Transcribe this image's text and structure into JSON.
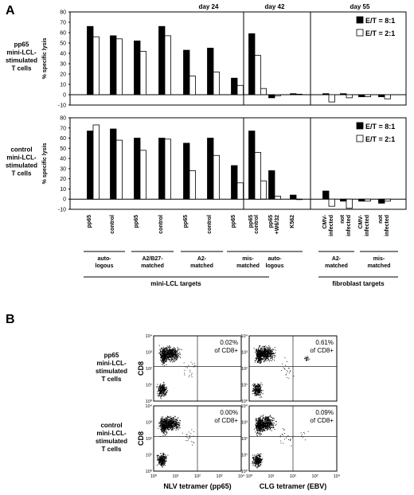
{
  "panels": {
    "a_label": "A",
    "b_label": "B",
    "day_titles": [
      "day 24",
      "day 42",
      "day 55"
    ]
  },
  "legend": {
    "entries": [
      {
        "label": "E/T = 8:1",
        "color": "#000000"
      },
      {
        "label": "E/T = 2:1",
        "color": "#ffffff"
      }
    ]
  },
  "row_labels": {
    "pp65": [
      "pp65",
      "mini-LCL-",
      "stimulated",
      "T cells"
    ],
    "control": [
      "control",
      "mini-LCL-",
      "stimulated",
      "T cells"
    ]
  },
  "group_labels": {
    "auto1": [
      "auto-",
      "logous"
    ],
    "a2b27": [
      "A2/B27-",
      "matched"
    ],
    "a2m1": [
      "A2-",
      "matched"
    ],
    "mis1": [
      "mis-",
      "matched"
    ],
    "auto2": [
      "auto-",
      "logous"
    ],
    "a2m2": [
      "A2-",
      "matched"
    ],
    "mis2": [
      "mis-",
      "matched"
    ]
  },
  "target_labels": {
    "mini_lcl": "mini-LCL targets",
    "fibroblast": "fibroblast targets"
  },
  "chart_data": [
    {
      "type": "bar",
      "panel": "A",
      "row": "pp65 mini-LCL-stimulated T cells",
      "ylabel": "% specific lysis",
      "ylim": [
        -10,
        80
      ],
      "yticks": [
        -10,
        0,
        10,
        20,
        30,
        40,
        50,
        60,
        70,
        80
      ],
      "series_names": [
        "E/T = 8:1",
        "E/T = 2:1"
      ],
      "subpanels": [
        {
          "day": "day 24",
          "categories": [
            [
              "pp65"
            ],
            [
              "control"
            ],
            [
              "pp65"
            ],
            [
              "control"
            ],
            [
              "pp65"
            ],
            [
              "control"
            ],
            [
              "pp65"
            ],
            [
              "control"
            ]
          ],
          "series": [
            {
              "name": "E/T = 8:1",
              "values": [
                66,
                57,
                52,
                66,
                43,
                45,
                16,
                12
              ]
            },
            {
              "name": "E/T = 2:1",
              "values": [
                56,
                54,
                42,
                57,
                18,
                22,
                9,
                6
              ]
            }
          ]
        },
        {
          "day": "day 42",
          "categories": [
            [
              "pp65"
            ],
            [
              "pp65",
              "+W6/32"
            ],
            [
              "K562"
            ]
          ],
          "series": [
            {
              "name": "E/T = 8:1",
              "values": [
                59,
                -3,
                1
              ]
            },
            {
              "name": "E/T = 2:1",
              "values": [
                38,
                -1,
                0.5
              ]
            }
          ]
        },
        {
          "day": "day 55",
          "categories": [
            [
              "CMV-",
              "infected"
            ],
            [
              "not",
              "infected"
            ],
            [
              "CMV-",
              "infected"
            ],
            [
              "not",
              "infected"
            ]
          ],
          "series": [
            {
              "name": "E/T = 8:1",
              "values": [
                1,
                1,
                -2,
                -2
              ]
            },
            {
              "name": "E/T = 2:1",
              "values": [
                -7,
                -3,
                -2,
                -4
              ]
            }
          ]
        }
      ]
    },
    {
      "type": "bar",
      "panel": "A",
      "row": "control mini-LCL-stimulated T cells",
      "ylabel": "% specific lysis",
      "ylim": [
        -10,
        80
      ],
      "yticks": [
        -10,
        0,
        10,
        20,
        30,
        40,
        50,
        60,
        70,
        80
      ],
      "series_names": [
        "E/T = 8:1",
        "E/T = 2:1"
      ],
      "subpanels": [
        {
          "day": "day 24",
          "categories": [
            [
              "pp65"
            ],
            [
              "control"
            ],
            [
              "pp65"
            ],
            [
              "control"
            ],
            [
              "pp65"
            ],
            [
              "control"
            ],
            [
              "pp65"
            ],
            [
              "control"
            ]
          ],
          "series": [
            {
              "name": "E/T = 8:1",
              "values": [
                67,
                69,
                60,
                60,
                55,
                60,
                33,
                30
              ]
            },
            {
              "name": "E/T = 2:1",
              "values": [
                73,
                58,
                48,
                59,
                28,
                43,
                16,
                18
              ]
            }
          ]
        },
        {
          "day": "day 42",
          "categories": [
            [
              "pp65"
            ],
            [
              "pp65",
              "+W6/32"
            ],
            [
              "K562"
            ]
          ],
          "series": [
            {
              "name": "E/T = 8:1",
              "values": [
                67,
                28,
                4
              ]
            },
            {
              "name": "E/T = 2:1",
              "values": [
                46,
                3,
                0
              ]
            }
          ]
        },
        {
          "day": "day 55",
          "categories": [
            [
              "CMV-",
              "infected"
            ],
            [
              "not",
              "infected"
            ],
            [
              "CMV-",
              "infected"
            ],
            [
              "not",
              "infected"
            ]
          ],
          "series": [
            {
              "name": "E/T = 8:1",
              "values": [
                8,
                -2,
                -2,
                -4
              ]
            },
            {
              "name": "E/T = 2:1",
              "values": [
                -7,
                -9,
                -2,
                -2
              ]
            }
          ]
        }
      ]
    },
    {
      "type": "scatter",
      "panel": "B",
      "description_axes": {
        "ylabel": "CD8",
        "xlabels": [
          "NLV tetramer (pp65)",
          "CLG tetramer (EBV)"
        ]
      },
      "axis_ticks": [
        "10⁰",
        "10¹",
        "10²",
        "10³",
        "10⁴"
      ],
      "xlim": [
        1,
        10000
      ],
      "ylim": [
        1,
        10000
      ],
      "scale": "log",
      "plots": [
        {
          "row": "pp65 mini-LCL-stimulated T cells",
          "tetramer": "NLV tetramer (pp65)",
          "value": "0.02%",
          "suffix": "of CD8+"
        },
        {
          "row": "pp65 mini-LCL-stimulated T cells",
          "tetramer": "CLG tetramer (EBV)",
          "value": "0.61%",
          "suffix": "of CD8+"
        },
        {
          "row": "control mini-LCL-stimulated T cells",
          "tetramer": "NLV tetramer (pp65)",
          "value": "0.00%",
          "suffix": "of CD8+"
        },
        {
          "row": "control mini-LCL-stimulated T cells",
          "tetramer": "CLG tetramer (EBV)",
          "value": "0.09%",
          "suffix": "of CD8+"
        }
      ]
    }
  ]
}
